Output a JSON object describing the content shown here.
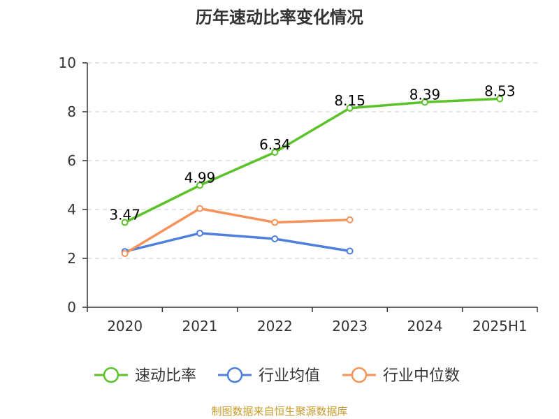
{
  "chart_data": {
    "type": "line",
    "title": "历年速动比率变化情况",
    "categories": [
      "2020",
      "2021",
      "2022",
      "2023",
      "2024",
      "2025H1"
    ],
    "ylim": [
      0,
      10
    ],
    "yticks": [
      0,
      2,
      4,
      6,
      8,
      10
    ],
    "grid": true,
    "legend_position": "bottom",
    "series": [
      {
        "name": "速动比率",
        "color": "#5cc22a",
        "values": [
          3.47,
          4.99,
          6.34,
          8.15,
          8.39,
          8.53
        ],
        "labels": [
          "3.47",
          "4.99",
          "6.34",
          "8.15",
          "8.39",
          "8.53"
        ],
        "show_labels": true
      },
      {
        "name": "行业均值",
        "color": "#4f7fdc",
        "values": [
          2.28,
          3.03,
          2.8,
          2.3,
          null,
          null
        ],
        "show_labels": false
      },
      {
        "name": "行业中位数",
        "color": "#f5935b",
        "values": [
          2.2,
          4.04,
          3.47,
          3.58,
          null,
          null
        ],
        "show_labels": false
      }
    ]
  },
  "footer": {
    "source": "制图数据来自恒生聚源数据库"
  }
}
